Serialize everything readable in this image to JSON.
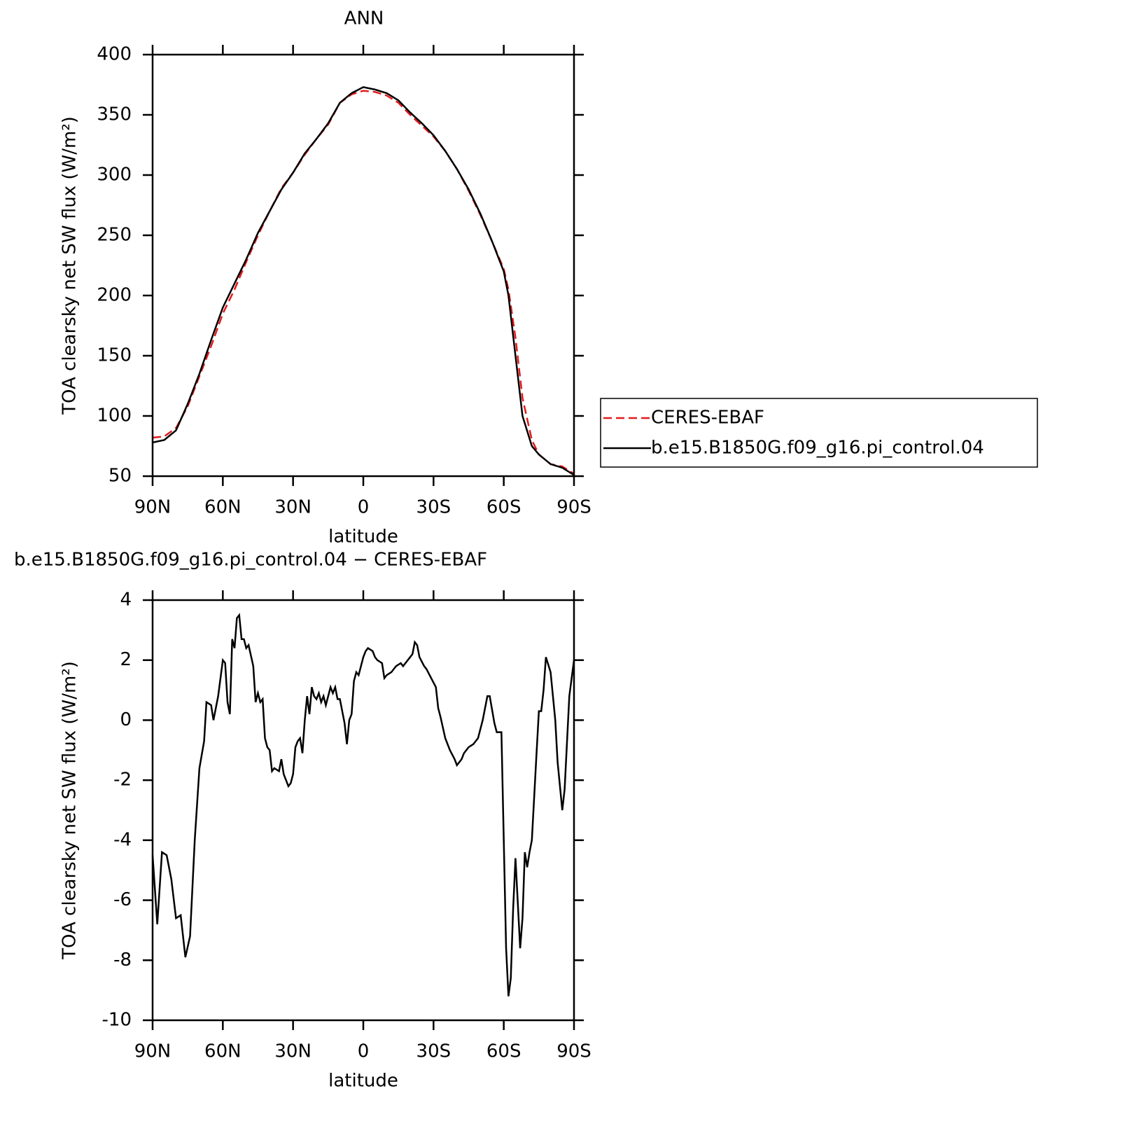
{
  "chart_data": [
    {
      "type": "line",
      "title": "ANN",
      "xlabel": "latitude",
      "ylabel": "TOA clearsky net SW flux (W/m²)",
      "x": [
        90,
        85,
        80,
        75,
        70,
        65,
        60,
        55,
        50,
        45,
        40,
        35,
        30,
        25,
        20,
        15,
        10,
        5,
        0,
        -5,
        -10,
        -15,
        -20,
        -25,
        -30,
        -35,
        -40,
        -45,
        -50,
        -55,
        -60,
        -62,
        -65,
        -68,
        -72,
        -75,
        -80,
        -85,
        -90
      ],
      "series": [
        {
          "name": "CERES-EBAF",
          "color": "#e31a1c",
          "dashed": true,
          "values": [
            82,
            83,
            90,
            108,
            133,
            158,
            185,
            205,
            228,
            250,
            270,
            289,
            302,
            317,
            330,
            342,
            360,
            367,
            370,
            369,
            366,
            360,
            350,
            341,
            332,
            320,
            305,
            287,
            267,
            245,
            222,
            205,
            165,
            115,
            80,
            68,
            60,
            58,
            52
          ]
        },
        {
          "name": "b.e15.B1850G.f09_g16.pi_control.04",
          "color": "#000000",
          "dashed": false,
          "values": [
            78,
            80,
            88,
            110,
            135,
            163,
            190,
            210,
            230,
            252,
            270,
            288,
            302,
            318,
            330,
            343,
            360,
            368,
            373,
            371,
            368,
            362,
            352,
            343,
            333,
            320,
            305,
            288,
            268,
            245,
            220,
            200,
            150,
            100,
            75,
            68,
            60,
            57,
            51
          ]
        }
      ],
      "xlim": [
        90,
        -90
      ],
      "xticks": [
        {
          "value": 90,
          "label": "90N"
        },
        {
          "value": 60,
          "label": "60N"
        },
        {
          "value": 30,
          "label": "30N"
        },
        0,
        {
          "value": -30,
          "label": "30S"
        },
        {
          "value": -60,
          "label": "60S"
        },
        {
          "value": -90,
          "label": "90S"
        }
      ],
      "ylim": [
        50,
        400
      ],
      "yticks": [
        50,
        100,
        150,
        200,
        250,
        300,
        350,
        400
      ],
      "legend": "right"
    },
    {
      "type": "line",
      "title": "b.e15.B1850G.f09_g16.pi_control.04 − CERES-EBAF",
      "xlabel": "latitude",
      "ylabel": "TOA clearsky net SW flux (W/m²)",
      "x": [
        90,
        88,
        86,
        84,
        82,
        80,
        78,
        76,
        74,
        72,
        70,
        68,
        67,
        65,
        64,
        62,
        60,
        59,
        58,
        57,
        56,
        55,
        54,
        53,
        52,
        51,
        50,
        49,
        47,
        46,
        45,
        44,
        43,
        42,
        41,
        40,
        39,
        38,
        36,
        35,
        34,
        32,
        31,
        30,
        29,
        28,
        27,
        26,
        25,
        24,
        23,
        22,
        21,
        20,
        19,
        18,
        17,
        16,
        15,
        14,
        13,
        12,
        11,
        10,
        8,
        7,
        6,
        5,
        4,
        3,
        2,
        1,
        0,
        -1,
        -2,
        -4,
        -5,
        -6,
        -8,
        -9,
        -10,
        -12,
        -14,
        -16,
        -17,
        -18,
        -20,
        -21,
        -22,
        -23,
        -24,
        -26,
        -27,
        -29,
        -31,
        -32,
        -33,
        -35,
        -37,
        -39,
        -40,
        -42,
        -43,
        -45,
        -47,
        -49,
        -51,
        -53,
        -54,
        -56,
        -57,
        -59,
        -61,
        -62,
        -63,
        -64,
        -65,
        -67,
        -68,
        -69,
        -70,
        -71,
        -72,
        -74,
        -75,
        -76,
        -77,
        -78,
        -80,
        -82,
        -83,
        -85,
        -86,
        -88,
        -90
      ],
      "values": [
        -4.5,
        -6.8,
        -4.4,
        -4.5,
        -5.3,
        -6.6,
        -6.5,
        -7.9,
        -7.2,
        -4,
        -1.6,
        -0.7,
        0.6,
        0.5,
        0,
        0.8,
        2,
        1.9,
        0.6,
        0.2,
        2.7,
        2.4,
        3.4,
        3.5,
        2.7,
        2.7,
        2.4,
        2.5,
        1.8,
        0.6,
        0.9,
        0.6,
        0.7,
        -0.6,
        -0.9,
        -1,
        -1.7,
        -1.6,
        -1.7,
        -1.3,
        -1.8,
        -2.2,
        -2.1,
        -1.8,
        -0.9,
        -0.7,
        -0.6,
        -1.1,
        0,
        0.8,
        0.2,
        1.1,
        0.8,
        0.7,
        0.9,
        0.6,
        0.8,
        0.5,
        0.8,
        1.1,
        0.9,
        1.1,
        0.7,
        0.7,
        -0.1,
        -0.8,
        0,
        0.2,
        1.3,
        1.6,
        1.5,
        1.8,
        2.1,
        2.3,
        2.4,
        2.3,
        2.1,
        2,
        1.9,
        1.4,
        1.5,
        1.6,
        1.8,
        1.9,
        1.8,
        1.9,
        2.1,
        2.2,
        2.6,
        2.5,
        2.1,
        1.8,
        1.7,
        1.4,
        1.1,
        0.4,
        0.1,
        -0.6,
        -1,
        -1.3,
        -1.5,
        -1.3,
        -1.1,
        -0.9,
        -0.8,
        -0.6,
        0,
        0.8,
        0.8,
        -0.1,
        -0.4,
        -0.4,
        -7.6,
        -9.2,
        -8.6,
        -6.3,
        -4.6,
        -7.6,
        -6.6,
        -4.4,
        -4.9,
        -4.4,
        -4,
        -1.1,
        0.3,
        0.3,
        1,
        2.1,
        1.6,
        0,
        -1.4,
        -3,
        -2.3,
        0.8,
        2
      ],
      "color": "#000000",
      "xlim": [
        90,
        -90
      ],
      "xticks": [
        {
          "value": 90,
          "label": "90N"
        },
        {
          "value": 60,
          "label": "60N"
        },
        {
          "value": 30,
          "label": "30N"
        },
        0,
        {
          "value": -30,
          "label": "30S"
        },
        {
          "value": -60,
          "label": "60S"
        },
        {
          "value": -90,
          "label": "90S"
        }
      ],
      "ylim": [
        -10,
        4
      ],
      "yticks": [
        -10,
        -8,
        -6,
        -4,
        -2,
        0,
        2,
        4
      ]
    }
  ]
}
